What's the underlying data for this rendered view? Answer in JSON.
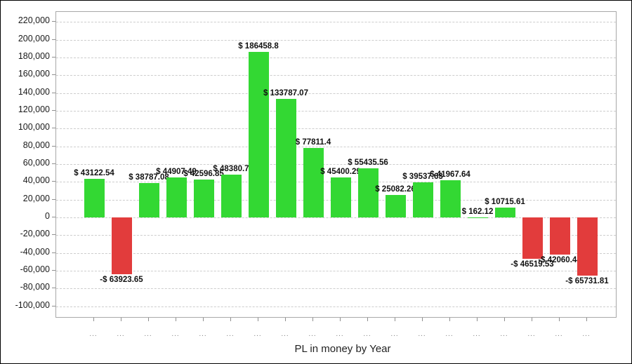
{
  "chart_data": {
    "type": "bar",
    "title": "PL in money by Year",
    "legend": "none",
    "grid": "horizontal-dashed",
    "categories": [
      "...",
      "...",
      "...",
      "...",
      "...",
      "...",
      "...",
      "...",
      "...",
      "...",
      "...",
      "...",
      "...",
      "...",
      "...",
      "...",
      "...",
      "...",
      "..."
    ],
    "values": [
      43122.54,
      -63923.65,
      38787.08,
      44907.49,
      42596.85,
      48380.7,
      186458.8,
      133787.07,
      77811.4,
      45400.29,
      55435.56,
      25082.26,
      39537.63,
      41967.64,
      162.12,
      10715.61,
      -46519.53,
      -42060.44,
      -65731.81
    ],
    "value_labels": [
      "$ 43122.54",
      "-$ 63923.65",
      "$ 38787.08",
      "$ 44907.49",
      "$ 42596.85",
      "$ 48380.7",
      "$ 186458.8",
      "$ 133787.07",
      "$ 77811.4",
      "$ 45400.29",
      "$ 55435.56",
      "$ 25082.26",
      "$ 39537.63",
      "$ 41967.64",
      "$ 162.12",
      "$ 10715.61",
      "-$ 46519.53",
      "-$ 42060.44",
      "-$ 65731.81"
    ],
    "yticks": [
      220000,
      200000,
      180000,
      160000,
      140000,
      120000,
      100000,
      80000,
      60000,
      40000,
      20000,
      0,
      -20000,
      -40000,
      -60000,
      -80000,
      -100000
    ],
    "ytick_labels": [
      "220,000",
      "200,000",
      "180,000",
      "160,000",
      "140,000",
      "120,000",
      "100,000",
      "80,000",
      "60,000",
      "40,000",
      "20,000",
      "0",
      "-20,000",
      "-40,000",
      "-60,000",
      "-80,000",
      "-100,000"
    ],
    "ylim": [
      -113700,
      231500
    ],
    "colors": {
      "positive_bar": "#33d833",
      "negative_bar": "#e23c3c",
      "grid_line": "#cdcdcd",
      "axis_border": "#a8a8a8",
      "x_tick_text": "#818181",
      "value_label_text": "#111111"
    }
  }
}
